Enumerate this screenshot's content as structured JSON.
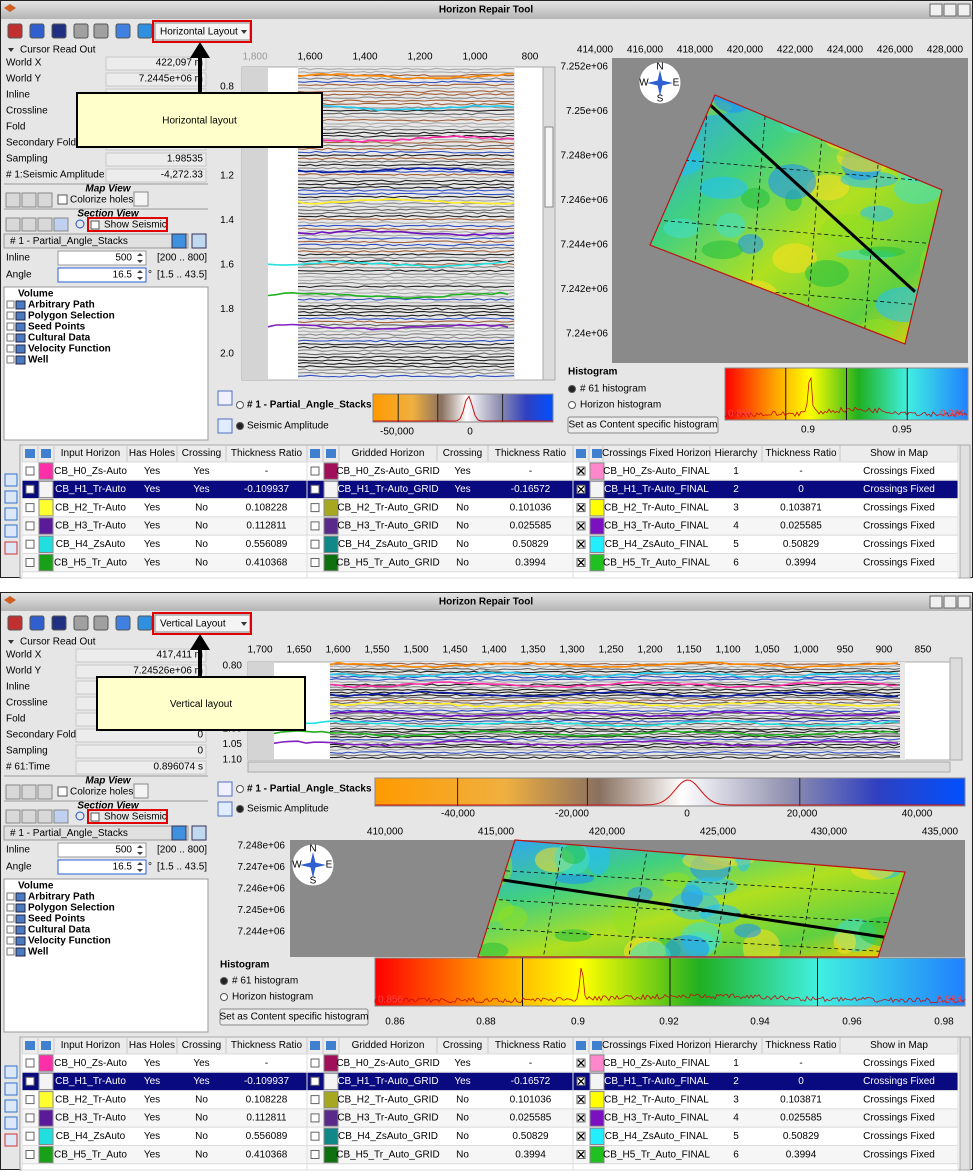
{
  "windows": [
    {
      "title": "Horizon Repair Tool",
      "layout_select": "Horizontal Layout",
      "callout": "Horizontal layout",
      "readout": {
        "heading": "Cursor Read Out",
        "rows": [
          {
            "label": "World X",
            "value": "422,097 m"
          },
          {
            "label": "World Y",
            "value": "7.2445e+06 m"
          },
          {
            "label": "Inline"
          },
          {
            "label": "Crossline"
          },
          {
            "label": "Fold"
          },
          {
            "label": "Secondary Fold"
          },
          {
            "label": "Sampling",
            "value": "1.98535"
          },
          {
            "label": "# 1:Seismic Amplitude",
            "value": "-4,272.33"
          }
        ]
      },
      "map_view": {
        "heading": "Map View",
        "checkbox": "Colorize holes"
      },
      "section_view": {
        "heading": "Section View",
        "checkbox": "Show Seismic"
      },
      "volume_select": "# 1 - Partial_Angle_Stacks",
      "inline": {
        "label": "Inline",
        "value": "500",
        "range": "[200 .. 800]"
      },
      "angle": {
        "label": "Angle",
        "value": "16.5",
        "unit": "°",
        "range": "[1.5 .. 43.5]"
      },
      "tree": {
        "root": "Volume",
        "items": [
          "Arbitrary Path",
          "Polygon Selection",
          "Seed Points",
          "Cultural Data",
          "Velocity Function",
          "Well"
        ]
      },
      "section_axis": {
        "x": [
          "1,800",
          "1,600",
          "1,400",
          "1,200",
          "1,000",
          "800"
        ],
        "y": [
          "0.8",
          "1.0",
          "1.2",
          "1.4",
          "1.6",
          "1.8",
          "2.0"
        ]
      },
      "colorbar": {
        "volume": "# 1 - Partial_Angle_Stacks",
        "attribute": "Seismic Amplitude",
        "ticks": [
          "-50,000",
          "0"
        ]
      },
      "map_axis": {
        "x": [
          "414,000",
          "416,000",
          "418,000",
          "420,000",
          "422,000",
          "424,000",
          "426,000",
          "428,000"
        ],
        "y": [
          "7.252e+06",
          "7.25e+06",
          "7.248e+06",
          "7.246e+06",
          "7.244e+06",
          "7.242e+06",
          "7.24e+06"
        ]
      },
      "compass": [
        "N",
        "E",
        "S",
        "W"
      ],
      "histogram": {
        "heading": "Histogram",
        "options": [
          "# 61 histogram",
          "Horizon histogram"
        ],
        "button": "Set as Content specific histogram",
        "ticks": [
          "0.9",
          "0.95"
        ],
        "min": "0.856",
        "max": "0.984"
      }
    },
    {
      "title": "Horizon Repair Tool",
      "layout_select": "Vertical Layout",
      "callout": "Vertical layout",
      "readout": {
        "heading": "Cursor Read Out",
        "rows": [
          {
            "label": "World X",
            "value": "417,411 m"
          },
          {
            "label": "World Y",
            "value": "7.24526e+06 m"
          },
          {
            "label": "Inline"
          },
          {
            "label": "Crossline"
          },
          {
            "label": "Fold"
          },
          {
            "label": "Secondary Fold",
            "value": "0"
          },
          {
            "label": "Sampling",
            "value": "0"
          },
          {
            "label": "# 61:Time",
            "value": "0.896074 s"
          }
        ]
      },
      "map_view": {
        "heading": "Map View",
        "checkbox": "Colorize holes"
      },
      "section_view": {
        "heading": "Section View",
        "checkbox": "Show Seismic"
      },
      "volume_select": "# 1 - Partial_Angle_Stacks",
      "inline": {
        "label": "Inline",
        "value": "500",
        "range": "[200 .. 800]"
      },
      "angle": {
        "label": "Angle",
        "value": "16.5",
        "unit": "°",
        "range": "[1.5 .. 43.5]"
      },
      "tree": {
        "root": "Volume",
        "items": [
          "Arbitrary Path",
          "Polygon Selection",
          "Seed Points",
          "Cultural Data",
          "Velocity Function",
          "Well"
        ]
      },
      "section_axis": {
        "x": [
          "1,700",
          "1,650",
          "1,600",
          "1,550",
          "1,500",
          "1,450",
          "1,400",
          "1,350",
          "1,300",
          "1,250",
          "1,200",
          "1,150",
          "1,100",
          "1,050",
          "1,000",
          "950",
          "900",
          "850"
        ],
        "y": [
          "0.80",
          "0.85",
          "0.90",
          "0.95",
          "1.00",
          "1.05",
          "1.10"
        ]
      },
      "colorbar": {
        "volume": "# 1 - Partial_Angle_Stacks",
        "attribute": "Seismic Amplitude",
        "ticks": [
          "-40,000",
          "-20,000",
          "0",
          "20,000",
          "40,000"
        ]
      },
      "map_axis": {
        "x": [
          "410,000",
          "415,000",
          "420,000",
          "425,000",
          "430,000",
          "435,000"
        ],
        "y": [
          "7.248e+06",
          "7.247e+06",
          "7.246e+06",
          "7.245e+06",
          "7.244e+06"
        ]
      },
      "compass": [
        "N",
        "E",
        "S",
        "W"
      ],
      "histogram": {
        "heading": "Histogram",
        "options": [
          "# 61 histogram",
          "Horizon histogram"
        ],
        "button": "Set as Content specific histogram",
        "ticks": [
          "0.86",
          "0.88",
          "0.9",
          "0.92",
          "0.94",
          "0.96",
          "0.98"
        ],
        "min": "0.856",
        "max": "0.984"
      }
    }
  ],
  "tables": [
    {
      "headers": [
        "Input Horizon",
        "Has Holes",
        "Crossing",
        "Thickness Ratio"
      ],
      "colors": [
        "#ff2fa8",
        "#f4f4f4",
        "#ffff30",
        "#5a1a9a",
        "#22dede",
        "#18a018"
      ],
      "rows": [
        [
          "CB_H0_Zs-Auto",
          "Yes",
          "Yes",
          "-"
        ],
        [
          "CB_H1_Tr-Auto",
          "Yes",
          "Yes",
          "-0.109937"
        ],
        [
          "CB_H2_Tr-Auto",
          "Yes",
          "No",
          "0.108228"
        ],
        [
          "CB_H3_Tr-Auto",
          "Yes",
          "No",
          "0.112811"
        ],
        [
          "CB_H4_ZsAuto",
          "Yes",
          "No",
          "0.556089"
        ],
        [
          "CB_H5_Tr_Auto",
          "Yes",
          "No",
          "0.410368"
        ]
      ]
    },
    {
      "headers": [
        "Gridded Horizon",
        "Crossing",
        "Thickness Ratio"
      ],
      "colors": [
        "#a0105a",
        "#f4f4f4",
        "#a8a820",
        "#5a2a8a",
        "#108888",
        "#107010"
      ],
      "rows": [
        [
          "CB_H0_Zs-Auto_GRID",
          "Yes",
          "-"
        ],
        [
          "CB_H1_Tr-Auto_GRID",
          "Yes",
          "-0.16572"
        ],
        [
          "CB_H2_Tr-Auto_GRID",
          "No",
          "0.101036"
        ],
        [
          "CB_H3_Tr-Auto_GRID",
          "No",
          "0.025585"
        ],
        [
          "CB_H4_ZsAuto_GRID",
          "No",
          "0.50829"
        ],
        [
          "CB_H5_Tr_Auto_GRID",
          "No",
          "0.3994"
        ]
      ]
    },
    {
      "headers": [
        "Crossings Fixed Horizon",
        "Hierarchy",
        "Thickness Ratio",
        "Show in Map"
      ],
      "colors": [
        "#ff88cc",
        "#f4f4f4",
        "#ffff00",
        "#7a10c0",
        "#22eeff",
        "#20c020"
      ],
      "rows": [
        [
          "CB_H0_Zs-Auto_FINAL",
          "1",
          "-",
          "Crossings Fixed"
        ],
        [
          "CB_H1_Tr-Auto_FINAL",
          "2",
          "0",
          "Crossings Fixed"
        ],
        [
          "CB_H2_Tr-Auto_FINAL",
          "3",
          "0.103871",
          "Crossings Fixed"
        ],
        [
          "CB_H3_Tr-Auto_FINAL",
          "4",
          "0.025585",
          "Crossings Fixed"
        ],
        [
          "CB_H4_ZsAuto_FINAL",
          "5",
          "0.50829",
          "Crossings Fixed"
        ],
        [
          "CB_H5_Tr_Auto_FINAL",
          "6",
          "0.3994",
          "Crossings Fixed"
        ]
      ]
    }
  ]
}
